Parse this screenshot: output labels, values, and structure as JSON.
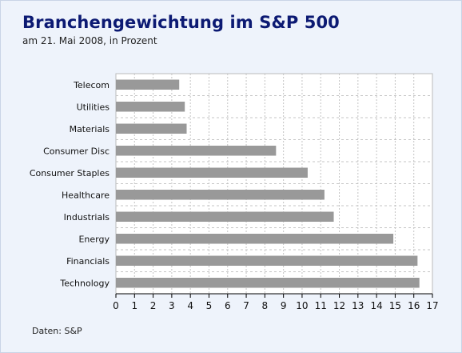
{
  "title": "Branchengewichtung im S&P 500",
  "subtitle": "am 21. Mai 2008, in Prozent",
  "source": "Daten: S&P",
  "colors": {
    "background": "#eef3fb",
    "plot_background": "#ffffff",
    "bar": "#999999",
    "title": "#0c1a73",
    "grid": "#c4c4c4"
  },
  "chart_data": {
    "type": "bar",
    "orientation": "horizontal",
    "categories": [
      "Telecom",
      "Utilities",
      "Materials",
      "Consumer Disc",
      "Consumer Staples",
      "Healthcare",
      "Industrials",
      "Energy",
      "Financials",
      "Technology"
    ],
    "values": [
      3.4,
      3.7,
      3.8,
      8.6,
      10.3,
      11.2,
      11.7,
      14.9,
      16.2,
      16.3
    ],
    "xlim": [
      0,
      17
    ],
    "xticks": [
      0,
      1,
      2,
      3,
      4,
      5,
      6,
      7,
      8,
      9,
      10,
      11,
      12,
      13,
      14,
      15,
      16,
      17
    ],
    "grid": true
  }
}
